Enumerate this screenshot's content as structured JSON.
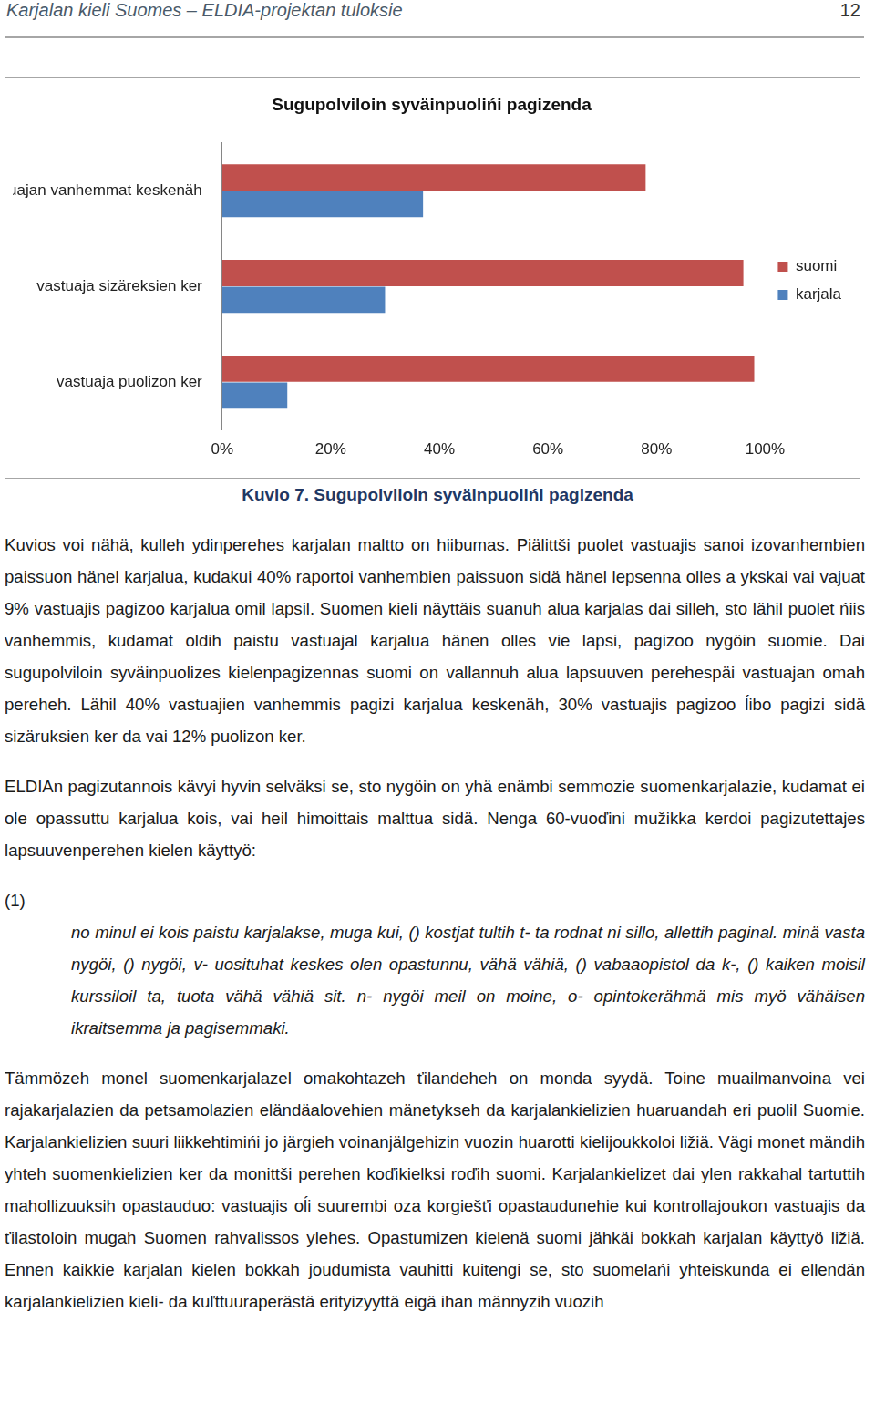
{
  "header": {
    "title": "Karjalan kieli Suomes – ELDIA-projektan tuloksie",
    "page": "12"
  },
  "chart_data": {
    "type": "bar",
    "orientation": "horizontal",
    "title": "Sugupolviloin syväinpuolińi pagizenda",
    "categories": [
      "vastuajan vanhemmat keskenäh",
      "vastuaja sizäreksien ker",
      "vastuaja puolizon ker"
    ],
    "series": [
      {
        "name": "suomi",
        "color": "#c0504d",
        "values": [
          78,
          96,
          98
        ]
      },
      {
        "name": "karjala",
        "color": "#4f81bd",
        "values": [
          37,
          30,
          12
        ]
      }
    ],
    "xlim": [
      0,
      100
    ],
    "xticks": [
      {
        "value": 0,
        "label": "0%"
      },
      {
        "value": 20,
        "label": "20%"
      },
      {
        "value": 40,
        "label": "40%"
      },
      {
        "value": 60,
        "label": "60%"
      },
      {
        "value": 80,
        "label": "80%"
      },
      {
        "value": 100,
        "label": "100%"
      }
    ],
    "grid": false,
    "legend": "right"
  },
  "caption": "Kuvio 7. Sugupolviloin syväinpuolińi pagizenda",
  "paragraphs_before": [
    "Kuvios voi nähä, kulleh ydinperehes karjalan maltto on hiibumas. Piälittši puolet vastuajis sanoi izovanhembien paissuon hänel karjalua, kudakui 40% raportoi vanhembien paissuon sidä hänel lepsenna olles a ykskai vai vajuat 9% vastuajis pagizoo karjalua omil lapsil. Suomen kieli näyttäis suanuh alua karjalas dai silleh, sto lähil puolet ńiis vanhemmis, kudamat oldih paistu vastuajal karjalua hänen olles vie lapsi, pagizoo nygöin suomie. Dai sugupolviloin syväinpuolizes kielenpagizennas suomi on vallannuh alua lapsuuven perehespäi vastuajan omah pereheh. Lähil 40% vastuajien vanhemmis pagizi karjalua keskenäh, 30% vastuajis pagizoo ĺibo pagizi sidä sizäruksien ker da vai 12% puolizon ker.",
    "ELDIAn pagizutannois kävyi hyvin selväksi se, sto nygöin on yhä enämbi semmozie suomenkarjalazie, kudamat ei ole opassuttu karjalua kois, vai heil himoittais malttua sidä. Nenga 60-vuoďini mužikka kerdoi pagizutettajes lapsuuvenperehen kielen käyttyö:"
  ],
  "example": {
    "number": "(1)",
    "text": "no minul ei kois paistu karjalakse, muga kui, () kostjat tultih t- ta rodnat ni sillo, allettih paginal. minä vasta nygöi, () nygöi, v- uosituhat keskes olen opastunnu, vähä vähiä, () vabaaopistol da k-, () kaiken moisil kurssiloil ta, tuota vähä vähiä sit. n- nygöi meil on moine, o- opintokerähmä mis myö vähäisen ikraitsemma ja pagisemmaki."
  },
  "paragraphs_after": [
    "Tämmözeh monel suomenkarjalazel omakohtazeh ťilandeheh on monda syydä. Toine muailmanvoina vei rajakarjalazien da petsamolazien eländäalovehien mänetykseh da karjalankielizien huaruandah eri puolil Suomie. Karjalankielizien suuri liikkehtimińi jo järgieh voinanjälgehizin vuozin huarotti kielijoukkoloi ližiä. Vägi monet mändih yhteh suomenkielizien ker da monittši perehen koďikielksi roďih suomi. Karjalankielizet dai ylen rakkahal tartuttih mahollizuuksih opastauduo: vastuajis oĺi suurembi oza korgiešťi opastaudunehie kui kontrollajoukon vastuajis da ťilastoloin mugah Suomen rahvalissos ylehes. Opastumizen kielenä suomi jähkäi bokkah karjalan käyttyö ližiä. Ennen kaikkie karjalan kielen bokkah joudumista vauhitti kuitengi se, sto suomelańi yhteiskunda ei ellendän karjalankielizien kieli- da kuľttuuraperästä erityizyyttä eigä ihan männyzih vuozih"
  ]
}
